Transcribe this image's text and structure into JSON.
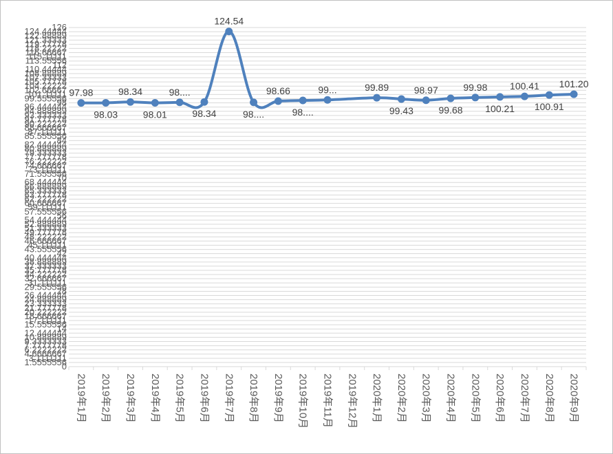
{
  "chart_data": {
    "type": "line",
    "title": "",
    "xlabel": "",
    "ylabel": "",
    "ylim": [
      0,
      126
    ],
    "y_tick_labels": [
      "0",
      "1.5555556",
      "3.1111111",
      "4.6666667",
      "6.2222222",
      "7.7777778",
      "9.3333333",
      "10.888889",
      "12.444444",
      "14",
      "15.555556",
      "17.111111",
      "18.666667",
      "20.222222",
      "21.777778",
      "23.333333",
      "24.888889",
      "26.444444",
      "28",
      "29.555556",
      "31.111111",
      "32.666667",
      "34.222222",
      "35.777778",
      "37.333333",
      "38.888889",
      "40.444444",
      "42",
      "43.555556",
      "45.111111",
      "46.666667",
      "48.222222",
      "49.777778",
      "51.333333",
      "52.888889",
      "54.444444",
      "56",
      "57.555556",
      "59.111111",
      "60.666667",
      "62.222222",
      "63.777778",
      "65.333333",
      "66.888889",
      "68.444444",
      "70",
      "71.555556",
      "73.111111",
      "74.666667",
      "76.222222",
      "77.777778",
      "79.333333",
      "80.888889",
      "82.444444",
      "84",
      "85.555556",
      "87.111111",
      "88.666667",
      "90.222222",
      "91.777778",
      "93.333333",
      "94.888889",
      "96.444444",
      "98",
      "99.555556",
      "101.11111",
      "102.66667",
      "104.22222",
      "105.77778",
      "107.33333",
      "108.88889",
      "110.44444",
      "112",
      "113.55556",
      "115.11111",
      "116.66667",
      "118.22222",
      "119.77778",
      "121.33333",
      "122.88889",
      "124.44444",
      "126"
    ],
    "categories": [
      "2019年1月",
      "2019年2月",
      "2019年3月",
      "2019年4月",
      "2019年5月",
      "2019年6月",
      "2019年7月",
      "2019年8月",
      "2019年9月",
      "2019年10月",
      "2019年11月",
      "2019年12月",
      "2020年1月",
      "2020年2月",
      "2020年3月",
      "2020年4月",
      "2020年5月",
      "2020年6月",
      "2020年7月",
      "2020年8月",
      "2020年9月"
    ],
    "series": [
      {
        "values": [
          97.98,
          98.03,
          98.34,
          98.01,
          98.2,
          98.34,
          124.54,
          98.2,
          98.66,
          98.9,
          99.1,
          null,
          99.89,
          99.43,
          98.97,
          99.68,
          99.98,
          100.21,
          100.41,
          100.91,
          101.2
        ],
        "labels": [
          "97.98",
          "98.03",
          "98.34",
          "98.01",
          "98....",
          "98.34",
          "124.54",
          "98....",
          "98.66",
          "98....",
          "99...",
          "",
          "99.89",
          "99.43",
          "98.97",
          "99.68",
          "99.98",
          "100.21",
          "100.41",
          "100.91",
          "101.20"
        ],
        "color": "#4f81bd"
      }
    ],
    "grid": true,
    "legend": "none"
  }
}
